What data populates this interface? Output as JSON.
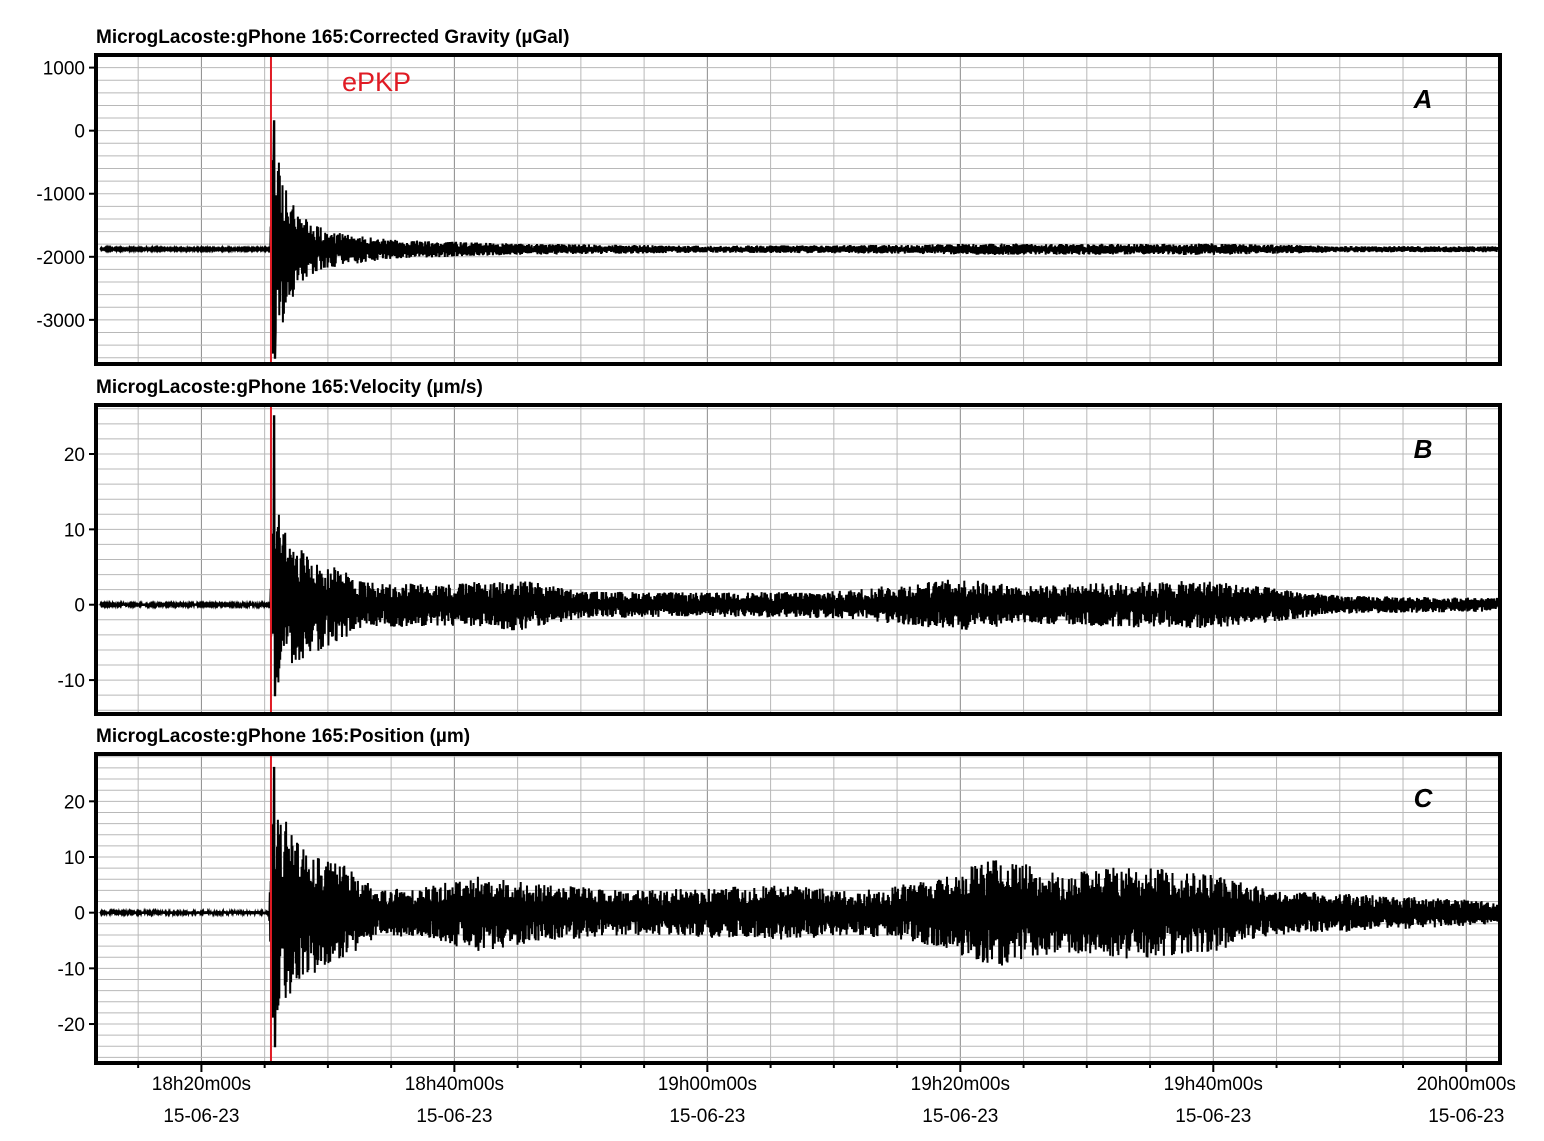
{
  "colors": {
    "trace": "#000000",
    "phase_marker": "#e01b24",
    "grid_minor": "#b8b8b8",
    "grid_major": "#8a8a8a",
    "frame": "#000000"
  },
  "x_axis": {
    "range": [
      "18h11m40s",
      "20h02m40s"
    ],
    "ticks": [
      {
        "time": "18h20m00s",
        "date": "15-06-23"
      },
      {
        "time": "18h40m00s",
        "date": "15-06-23"
      },
      {
        "time": "19h00m00s",
        "date": "15-06-23"
      },
      {
        "time": "19h20m00s",
        "date": "15-06-23"
      },
      {
        "time": "19h40m00s",
        "date": "15-06-23"
      },
      {
        "time": "20h00m00s",
        "date": "15-06-23"
      }
    ]
  },
  "phase": {
    "label": "ePKP",
    "time": "18h25m30s"
  },
  "chart_data": [
    {
      "type": "line",
      "panel_label": "A",
      "title": "MicrogLacoste:gPhone 165:Corrected Gravity (µGal)",
      "ylim": [
        -3700,
        1200
      ],
      "yticks": [
        "1000",
        "0",
        "-1000",
        "-2000",
        "-3000"
      ],
      "ytick_values": [
        1000,
        0,
        -1000,
        -2000,
        -3000
      ],
      "baseline": -1880,
      "peak_max": 150,
      "peak_min": -3600,
      "envelope": [
        {
          "t": "18h12m00s",
          "amp": 15
        },
        {
          "t": "18h25m25s",
          "amp": 15
        },
        {
          "t": "18h25m40s",
          "amp": 1800
        },
        {
          "t": "18h26m40s",
          "amp": 1000
        },
        {
          "t": "18h28m30s",
          "amp": 420
        },
        {
          "t": "18h31m00s",
          "amp": 260
        },
        {
          "t": "18h35m00s",
          "amp": 150
        },
        {
          "t": "18h45m00s",
          "amp": 90
        },
        {
          "t": "19h00m00s",
          "amp": 55
        },
        {
          "t": "19h15m00s",
          "amp": 70
        },
        {
          "t": "19h22m00s",
          "amp": 90
        },
        {
          "t": "19h35m00s",
          "amp": 85
        },
        {
          "t": "19h40m00s",
          "amp": 95
        },
        {
          "t": "19h50m00s",
          "amp": 50
        },
        {
          "t": "20h02m30s",
          "amp": 45
        }
      ]
    },
    {
      "type": "line",
      "panel_label": "B",
      "title": "MicrogLacoste:gPhone 165:Velocity (µm/s)",
      "ylim": [
        -14.5,
        26.5
      ],
      "yticks": [
        "20",
        "10",
        "0",
        "-10"
      ],
      "ytick_values": [
        20,
        10,
        0,
        -10
      ],
      "baseline": 0,
      "peak_max": 25,
      "peak_min": -12,
      "envelope": [
        {
          "t": "18h12m00s",
          "amp": 0.15
        },
        {
          "t": "18h25m25s",
          "amp": 0.15
        },
        {
          "t": "18h25m40s",
          "amp": 14
        },
        {
          "t": "18h27m00s",
          "amp": 8
        },
        {
          "t": "18h30m00s",
          "amp": 5.5
        },
        {
          "t": "18h33m00s",
          "amp": 3
        },
        {
          "t": "18h40m00s",
          "amp": 2.8
        },
        {
          "t": "18h45m00s",
          "amp": 3.5
        },
        {
          "t": "18h50m00s",
          "amp": 1.8
        },
        {
          "t": "19h00m00s",
          "amp": 1.6
        },
        {
          "t": "19h10m00s",
          "amp": 1.8
        },
        {
          "t": "19h20m00s",
          "amp": 3.5
        },
        {
          "t": "19h25m00s",
          "amp": 2.5
        },
        {
          "t": "19h33m00s",
          "amp": 3
        },
        {
          "t": "19h40m00s",
          "amp": 3.2
        },
        {
          "t": "19h50m00s",
          "amp": 1.2
        },
        {
          "t": "20h02m30s",
          "amp": 0.9
        }
      ]
    },
    {
      "type": "line",
      "panel_label": "C",
      "title": "MicrogLacoste:gPhone 165:Position (µm)",
      "ylim": [
        -27,
        28.5
      ],
      "yticks": [
        "20",
        "10",
        "0",
        "-10",
        "-20"
      ],
      "ytick_values": [
        20,
        10,
        0,
        -10,
        -20
      ],
      "baseline": 0,
      "peak_max": 26,
      "peak_min": -24,
      "envelope": [
        {
          "t": "18h12m00s",
          "amp": 0.2
        },
        {
          "t": "18h25m20s",
          "amp": 0.3
        },
        {
          "t": "18h25m40s",
          "amp": 20
        },
        {
          "t": "18h28m00s",
          "amp": 12
        },
        {
          "t": "18h31m00s",
          "amp": 9
        },
        {
          "t": "18h34m00s",
          "amp": 4
        },
        {
          "t": "18h38m00s",
          "amp": 5
        },
        {
          "t": "18h42m00s",
          "amp": 7
        },
        {
          "t": "18h47m00s",
          "amp": 5
        },
        {
          "t": "18h55m00s",
          "amp": 4
        },
        {
          "t": "19h05m00s",
          "amp": 5
        },
        {
          "t": "19h12m00s",
          "amp": 4
        },
        {
          "t": "19h18m00s",
          "amp": 6
        },
        {
          "t": "19h23m00s",
          "amp": 10
        },
        {
          "t": "19h28m00s",
          "amp": 7
        },
        {
          "t": "19h33m00s",
          "amp": 8.5
        },
        {
          "t": "19h40m00s",
          "amp": 7
        },
        {
          "t": "19h45m00s",
          "amp": 4
        },
        {
          "t": "19h55m00s",
          "amp": 3
        },
        {
          "t": "20h02m30s",
          "amp": 2
        }
      ]
    }
  ]
}
